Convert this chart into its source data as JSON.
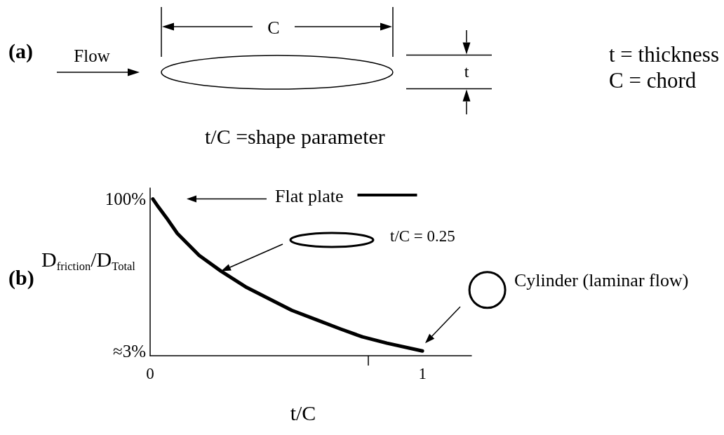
{
  "chart_data": {
    "type": "line",
    "annotations": [
      "(a)",
      "Flow",
      "C",
      "t",
      "t = thickness",
      "C = chord",
      "t/C =shape parameter",
      "(b)",
      "Flat plate",
      "t/C = 0.25",
      "Cylinder (laminar flow)"
    ],
    "xlabel": "t/C",
    "ylabel": "D$_{friction}$/D$_{Total}$",
    "x": [
      0.01,
      0.03,
      0.06,
      0.1,
      0.18,
      0.26,
      0.35,
      0.44,
      0.52,
      0.61,
      0.7,
      0.78,
      0.87,
      1
    ],
    "values": [
      100,
      95,
      88,
      78,
      64,
      54,
      44,
      36,
      29,
      23,
      17,
      12,
      8,
      3
    ],
    "color": "#000000",
    "xlim": [
      0,
      1.18
    ],
    "xticks": [
      0,
      {
        "value": 0.8,
        "label": null
      },
      1
    ],
    "ylim": [
      0,
      107
    ],
    "yticks": [
      {
        "value": 3,
        "label": "≈3%"
      },
      {
        "value": 100,
        "label": "100%"
      }
    ],
    "grid": false,
    "marker": "none"
  }
}
